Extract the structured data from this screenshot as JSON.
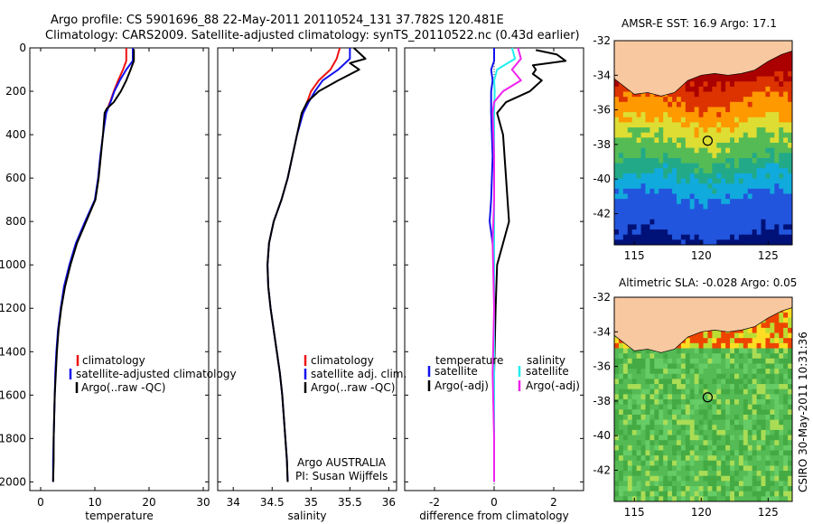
{
  "header": {
    "line1": "Argo profile: CS 5901696_88 22-May-2011 20110524_131 37.782S 120.481E",
    "line2": "Climatology: CARS2009. Satellite-adjusted climatology: synTS_20110522.nc (0.43d earlier)"
  },
  "credits": {
    "agency": "Argo AUSTRALIA",
    "pi": "PI: Susan Wijffels",
    "stamp": "CSIRO 30-May-2011 10:31:36"
  },
  "colors": {
    "climatology": "#ee1111",
    "satellite": "#1111ee",
    "argo": "#000000",
    "sal_satellite": "#22eeee",
    "sal_argo": "#ee22ee",
    "land": "#f8c8a0"
  },
  "chart_data": [
    {
      "id": "temperature",
      "type": "line",
      "xlabel": "temperature",
      "xlim": [
        -2,
        31
      ],
      "xticks": [
        0,
        10,
        20,
        30
      ],
      "ylim": [
        2040,
        0
      ],
      "yticks": [
        0,
        200,
        400,
        600,
        800,
        1000,
        1200,
        1400,
        1600,
        1800,
        2000
      ],
      "legend": {
        "position": "lower-center",
        "entries": [
          "climatology",
          "satellite-adjusted climatology",
          "Argo(..raw -QC)"
        ]
      },
      "series": [
        {
          "name": "climatology",
          "color": "#ee1111",
          "depth": [
            0,
            60,
            100,
            150,
            200,
            250,
            300
          ],
          "values": [
            15.8,
            15.8,
            15.2,
            14.3,
            13.5,
            12.8,
            12.0
          ]
        },
        {
          "name": "satellite-adjusted climatology",
          "color": "#1111ee",
          "depth": [
            0,
            60,
            100,
            150,
            200,
            250,
            300,
            400,
            500,
            600,
            700,
            800,
            900,
            1000,
            1100,
            1200,
            1300,
            1400,
            1500,
            1600,
            1700,
            1800,
            1900,
            2000
          ],
          "values": [
            17.0,
            17.0,
            15.8,
            14.6,
            13.6,
            12.9,
            12.1,
            11.5,
            11.0,
            10.6,
            10.0,
            8.2,
            6.5,
            5.3,
            4.3,
            3.7,
            3.2,
            2.9,
            2.7,
            2.6,
            2.5,
            2.4,
            2.3,
            2.3
          ]
        },
        {
          "name": "Argo(..raw -QC)",
          "color": "#000000",
          "depth": [
            5,
            60,
            100,
            150,
            200,
            250,
            280,
            300,
            400,
            500,
            600,
            700,
            800,
            900,
            1000,
            1100,
            1200,
            1300,
            1400,
            1500,
            1600,
            1700,
            1800,
            1900,
            2000
          ],
          "values": [
            17.2,
            17.2,
            16.6,
            15.8,
            14.8,
            13.5,
            12.2,
            11.8,
            11.5,
            11.1,
            10.7,
            10.1,
            8.4,
            6.7,
            5.5,
            4.5,
            3.8,
            3.3,
            3.0,
            2.8,
            2.6,
            2.5,
            2.4,
            2.4,
            2.3
          ]
        }
      ]
    },
    {
      "id": "salinity",
      "type": "line",
      "xlabel": "salinity",
      "xlim": [
        33.8,
        36.1
      ],
      "xticks": [
        34,
        34.5,
        35,
        35.5,
        36
      ],
      "ylim": [
        2040,
        0
      ],
      "yticks": [
        0,
        200,
        400,
        600,
        800,
        1000,
        1200,
        1400,
        1600,
        1800,
        2000
      ],
      "legend": {
        "position": "lower-right",
        "entries": [
          "climatology",
          "satellite adj. clim.",
          "Argo(..raw -QC)"
        ]
      },
      "series": [
        {
          "name": "climatology",
          "color": "#ee1111",
          "depth": [
            0,
            50,
            100,
            150,
            200,
            250,
            300
          ],
          "values": [
            35.37,
            35.33,
            35.25,
            35.1,
            35.0,
            34.95,
            34.9
          ]
        },
        {
          "name": "satellite adj. clim.",
          "color": "#1111ee",
          "depth": [
            0,
            50,
            100,
            150,
            200,
            250,
            300,
            400,
            500,
            600,
            700,
            800,
            900,
            1000,
            1100,
            1200,
            1300,
            1400,
            1500,
            1600,
            1700,
            1800,
            1900,
            2000
          ],
          "values": [
            35.5,
            35.5,
            35.35,
            35.15,
            35.05,
            34.97,
            34.9,
            34.82,
            34.76,
            34.7,
            34.62,
            34.52,
            34.46,
            34.44,
            34.45,
            34.48,
            34.52,
            34.56,
            34.6,
            34.63,
            34.65,
            34.67,
            34.69,
            34.7
          ]
        },
        {
          "name": "Argo(..raw -QC)",
          "color": "#000000",
          "depth": [
            0,
            50,
            70,
            100,
            150,
            200,
            250,
            300,
            400,
            500,
            600,
            700,
            800,
            900,
            1000,
            1100,
            1200,
            1300,
            1400,
            1500,
            1600,
            1700,
            1800,
            1900,
            2000
          ],
          "values": [
            35.55,
            35.7,
            35.5,
            35.62,
            35.35,
            35.1,
            34.95,
            34.88,
            34.82,
            34.76,
            34.7,
            34.62,
            34.52,
            34.46,
            34.44,
            34.45,
            34.48,
            34.52,
            34.56,
            34.6,
            34.63,
            34.65,
            34.67,
            34.69,
            34.7
          ]
        }
      ]
    },
    {
      "id": "difference",
      "type": "line",
      "xlabel": "difference from climatology",
      "xlim": [
        -3,
        3
      ],
      "xticks": [
        -2,
        0,
        2
      ],
      "ylim": [
        2040,
        0
      ],
      "yticks": [
        0,
        200,
        400,
        600,
        800,
        1000,
        1200,
        1400,
        1600,
        1800,
        2000
      ],
      "legend": {
        "position": "lower-center",
        "headers": [
          "temperature",
          "salinity"
        ],
        "entries": [
          "satellite",
          "Argo(-adj)",
          "satellite",
          "Argo(-adj)"
        ]
      },
      "series": [
        {
          "name": "temperature satellite",
          "color": "#1111ee",
          "depth": [
            0,
            60,
            100,
            150,
            200,
            300,
            500,
            700,
            800,
            900,
            1000,
            1200,
            1500,
            1800,
            2000
          ],
          "values": [
            0.0,
            0.0,
            -0.1,
            -0.05,
            -0.1,
            -0.1,
            -0.05,
            -0.1,
            -0.15,
            -0.05,
            0.0,
            0.0,
            0.0,
            0.0,
            0.0
          ]
        },
        {
          "name": "temperature Argo(-adj)",
          "color": "#000000",
          "depth": [
            10,
            30,
            60,
            80,
            100,
            120,
            150,
            200,
            250,
            300,
            400,
            600,
            800,
            900,
            1000,
            1200,
            1500,
            1800,
            2000
          ],
          "values": [
            1.4,
            2.1,
            2.4,
            1.3,
            1.4,
            1.3,
            1.6,
            1.2,
            0.4,
            0.1,
            0.3,
            0.4,
            0.5,
            0.3,
            0.1,
            0.05,
            0.0,
            0.0,
            0.0
          ]
        },
        {
          "name": "salinity satellite",
          "color": "#22eeee",
          "depth": [
            0,
            50,
            100,
            150,
            200,
            300,
            500,
            800,
            1000,
            1500,
            2000
          ],
          "values": [
            0.6,
            0.7,
            0.1,
            0.0,
            0.02,
            0.0,
            0.0,
            0.0,
            0.0,
            0.0,
            0.0
          ]
        },
        {
          "name": "salinity Argo(-adj)",
          "color": "#ee22ee",
          "depth": [
            0,
            50,
            100,
            150,
            200,
            250,
            300,
            500,
            700,
            900,
            1200,
            1500,
            1800,
            2000
          ],
          "values": [
            0.8,
            0.9,
            0.6,
            0.9,
            0.3,
            0.0,
            -0.05,
            0.0,
            0.0,
            -0.05,
            0.0,
            -0.05,
            0.0,
            0.0
          ]
        }
      ]
    },
    {
      "id": "sst_map",
      "type": "heatmap",
      "title": "AMSR-E SST: 16.9 Argo: 17.1",
      "xlim": [
        113.5,
        126.8
      ],
      "ylim": [
        -43.8,
        -32
      ],
      "xticks": [
        115,
        120,
        125
      ],
      "yticks": [
        -32,
        -34,
        -36,
        -38,
        -40,
        -42
      ],
      "argo_position": {
        "lon": 120.481,
        "lat": -37.782
      }
    },
    {
      "id": "sla_map",
      "type": "heatmap",
      "title": "Altimetric SLA: -0.028 Argo: 0.05",
      "xlim": [
        113.5,
        126.8
      ],
      "ylim": [
        -43.8,
        -32
      ],
      "xticks": [
        115,
        120,
        125
      ],
      "yticks": [
        -32,
        -34,
        -36,
        -38,
        -40,
        -42
      ],
      "argo_position": {
        "lon": 120.481,
        "lat": -37.782
      }
    }
  ]
}
